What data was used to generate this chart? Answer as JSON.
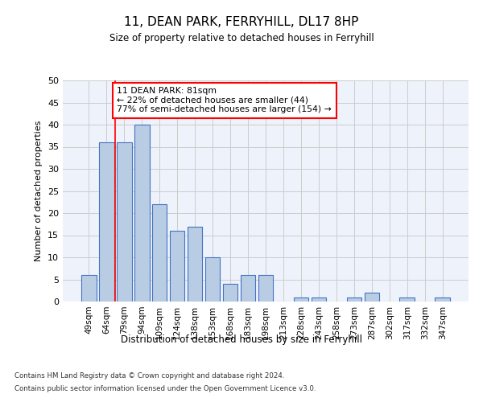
{
  "title": "11, DEAN PARK, FERRYHILL, DL17 8HP",
  "subtitle": "Size of property relative to detached houses in Ferryhill",
  "xlabel": "Distribution of detached houses by size in Ferryhill",
  "ylabel": "Number of detached properties",
  "categories": [
    "49sqm",
    "64sqm",
    "79sqm",
    "94sqm",
    "109sqm",
    "124sqm",
    "138sqm",
    "153sqm",
    "168sqm",
    "183sqm",
    "198sqm",
    "213sqm",
    "228sqm",
    "243sqm",
    "258sqm",
    "273sqm",
    "287sqm",
    "302sqm",
    "317sqm",
    "332sqm",
    "347sqm"
  ],
  "values": [
    6,
    36,
    36,
    40,
    22,
    16,
    17,
    10,
    4,
    6,
    6,
    0,
    1,
    1,
    0,
    1,
    2,
    0,
    1,
    0,
    1
  ],
  "bar_color": "#b8cce4",
  "bar_edge_color": "#4472c4",
  "vline_x": 1.5,
  "vline_color": "#ff0000",
  "annotation_text": "11 DEAN PARK: 81sqm\n← 22% of detached houses are smaller (44)\n77% of semi-detached houses are larger (154) →",
  "annotation_box_color": "#ffffff",
  "annotation_box_edge_color": "#ff0000",
  "ylim": [
    0,
    50
  ],
  "yticks": [
    0,
    5,
    10,
    15,
    20,
    25,
    30,
    35,
    40,
    45,
    50
  ],
  "grid_color": "#cccccc",
  "background_color": "#eef2fb",
  "footer_line1": "Contains HM Land Registry data © Crown copyright and database right 2024.",
  "footer_line2": "Contains public sector information licensed under the Open Government Licence v3.0."
}
